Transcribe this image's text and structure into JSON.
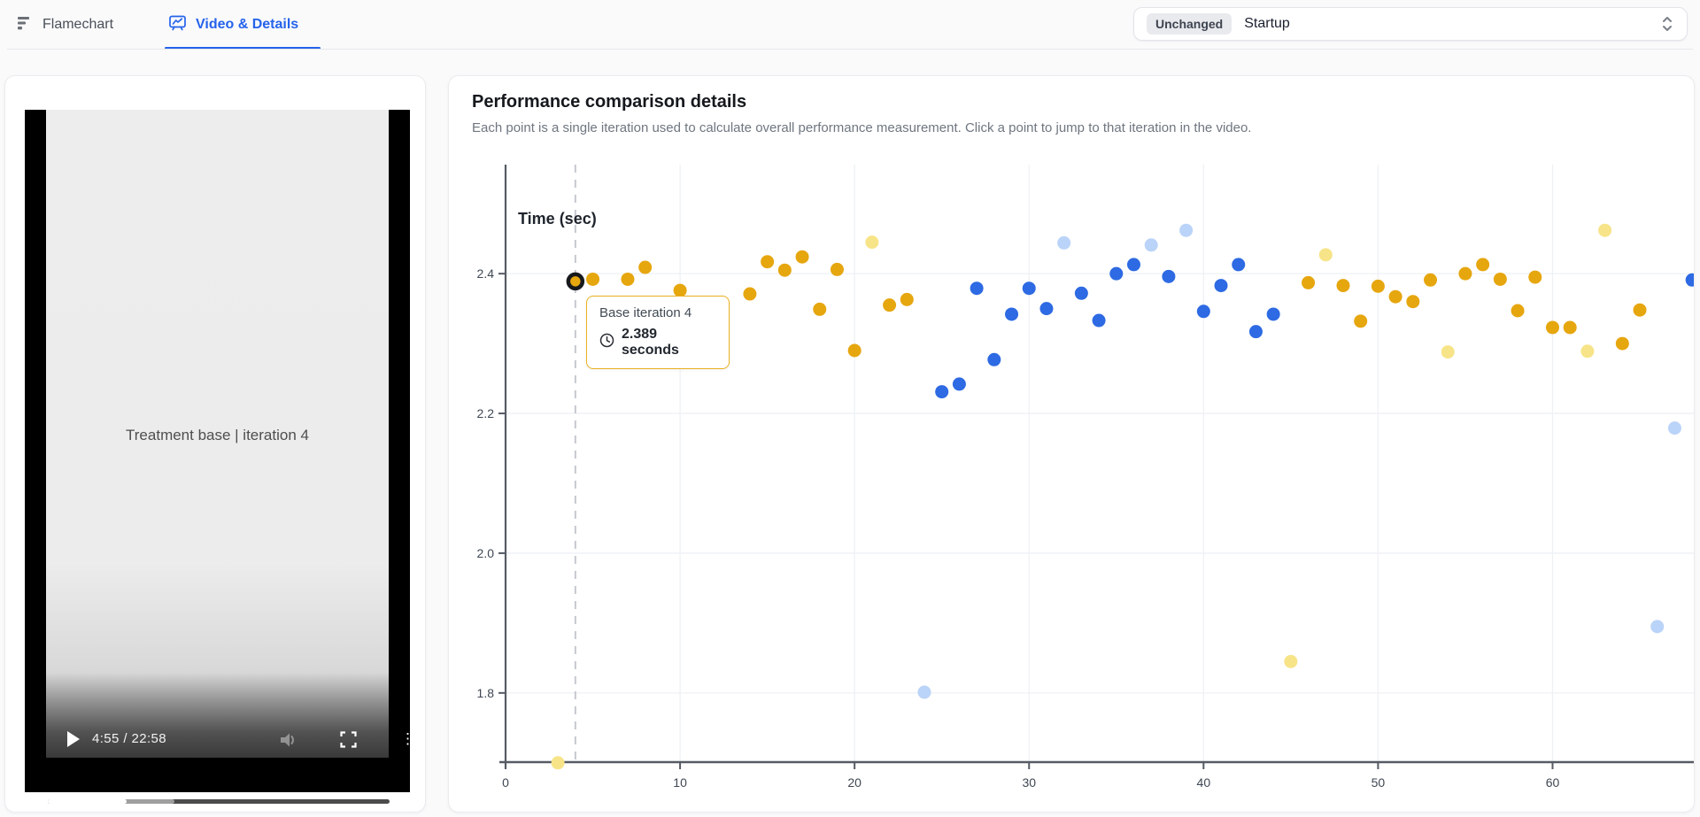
{
  "tabs": {
    "flamechart": "Flamechart",
    "video_details": "Video & Details"
  },
  "selector": {
    "badge": "Unchanged",
    "value": "Startup"
  },
  "video": {
    "overlay_title": "Treatment base | iteration 4",
    "time": "4:55 / 22:58"
  },
  "panel": {
    "title": "Performance comparison details",
    "subtitle": "Each point is a single iteration used to calculate overall performance measurement. Click a point to jump to that iteration in the video."
  },
  "tooltip": {
    "title": "Base iteration 4",
    "value": "2.389 seconds"
  },
  "colors": {
    "base": "#e6a60e",
    "base_outlier": "#f7e488",
    "treatment": "#2d6ae3",
    "treatment_outlier": "#bad3f8",
    "accent": "#2563eb",
    "tooltip_border": "#e9b021",
    "axis": "#565b64",
    "grid": "#eef1f5",
    "dashed_line": "#c5c8ce"
  },
  "chart_data": {
    "type": "scatter",
    "ylabel": "Time (sec)",
    "x_ticks": [
      0,
      10,
      20,
      30,
      40,
      50,
      60
    ],
    "y_ticks": [
      2.4,
      2.2,
      2.0,
      1.8
    ],
    "xlim": [
      0,
      68.5
    ],
    "ylim": [
      1.701,
      2.556
    ],
    "grid": true,
    "dashed_line_x": 4,
    "selected_point": {
      "series": "base",
      "x": 4,
      "y": 2.389
    },
    "series": [
      {
        "name": "base",
        "color_key": "base",
        "points": [
          [
            4,
            2.389
          ],
          [
            5,
            2.392
          ],
          [
            7,
            2.392
          ],
          [
            8,
            2.409
          ],
          [
            10,
            2.376
          ],
          [
            14,
            2.371
          ],
          [
            15,
            2.417
          ],
          [
            16,
            2.405
          ],
          [
            17,
            2.424
          ],
          [
            18,
            2.349
          ],
          [
            19,
            2.406
          ],
          [
            20,
            2.29
          ],
          [
            22,
            2.355
          ],
          [
            23,
            2.363
          ],
          [
            46,
            2.387
          ],
          [
            48,
            2.383
          ],
          [
            49,
            2.332
          ],
          [
            50,
            2.382
          ],
          [
            51,
            2.367
          ],
          [
            52,
            2.36
          ],
          [
            53,
            2.391
          ],
          [
            55,
            2.4
          ],
          [
            56,
            2.413
          ],
          [
            57,
            2.392
          ],
          [
            58,
            2.347
          ],
          [
            59,
            2.395
          ],
          [
            60,
            2.323
          ],
          [
            61,
            2.323
          ],
          [
            64,
            2.3
          ],
          [
            65,
            2.348
          ]
        ]
      },
      {
        "name": "base-outlier",
        "color_key": "base_outlier",
        "points": [
          [
            3,
            1.7
          ],
          [
            21,
            2.445
          ],
          [
            45,
            1.845
          ],
          [
            47,
            2.427
          ],
          [
            54,
            2.288
          ],
          [
            62,
            2.289
          ],
          [
            63,
            2.462
          ]
        ]
      },
      {
        "name": "treatment",
        "color_key": "treatment",
        "points": [
          [
            25,
            2.231
          ],
          [
            26,
            2.242
          ],
          [
            27,
            2.379
          ],
          [
            28,
            2.277
          ],
          [
            29,
            2.342
          ],
          [
            30,
            2.379
          ],
          [
            31,
            2.35
          ],
          [
            33,
            2.372
          ],
          [
            34,
            2.333
          ],
          [
            35,
            2.4
          ],
          [
            36,
            2.413
          ],
          [
            38,
            2.396
          ],
          [
            40,
            2.346
          ],
          [
            41,
            2.383
          ],
          [
            42,
            2.413
          ],
          [
            43,
            2.317
          ],
          [
            44,
            2.342
          ],
          [
            68,
            2.391
          ]
        ]
      },
      {
        "name": "treatment-outlier",
        "color_key": "treatment_outlier",
        "points": [
          [
            24,
            1.801
          ],
          [
            32,
            2.444
          ],
          [
            37,
            2.441
          ],
          [
            39,
            2.462
          ],
          [
            66,
            1.895
          ],
          [
            67,
            2.179
          ]
        ]
      }
    ]
  }
}
